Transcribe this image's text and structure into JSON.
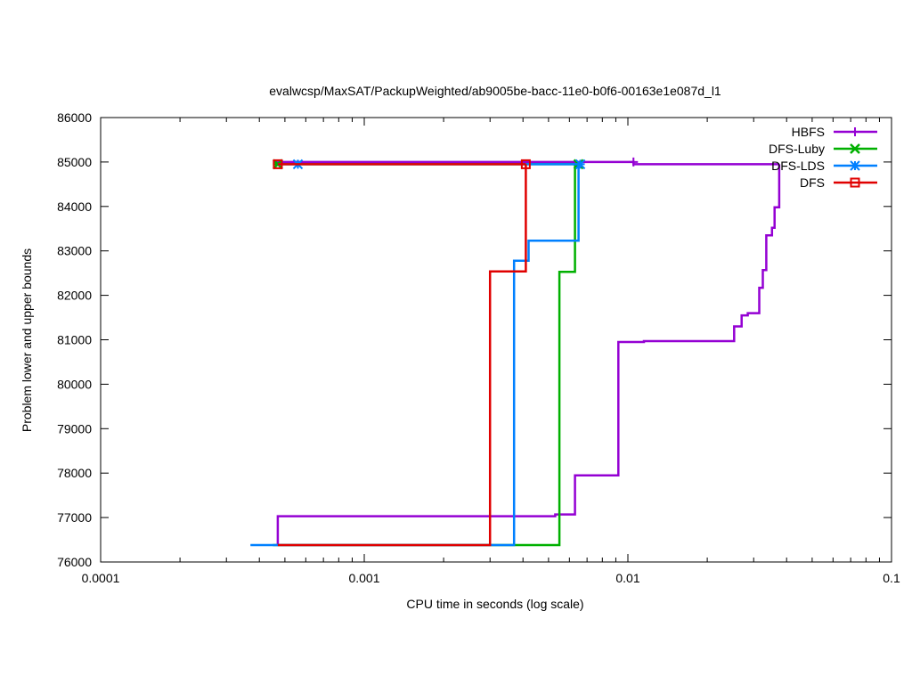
{
  "chart_data": {
    "type": "line",
    "title": "evalwcsp/MaxSAT/PackupWeighted/ab9005be-bacc-11e0-b0f6-00163e1e087d_l1",
    "xlabel": "CPU time in seconds (log scale)",
    "ylabel": "Problem lower and upper bounds",
    "xscale": "log",
    "xlim": [
      0.0001,
      0.1
    ],
    "ylim": [
      76000,
      86000
    ],
    "grid": false,
    "legend_position": "top-right",
    "x_ticks": [
      {
        "value": 0.0001,
        "label": "0.0001"
      },
      {
        "value": 0.001,
        "label": "0.001"
      },
      {
        "value": 0.01,
        "label": "0.01"
      },
      {
        "value": 0.1,
        "label": "0.1"
      }
    ],
    "y_ticks": [
      {
        "value": 76000,
        "label": "76000"
      },
      {
        "value": 77000,
        "label": "77000"
      },
      {
        "value": 78000,
        "label": "78000"
      },
      {
        "value": 79000,
        "label": "79000"
      },
      {
        "value": 80000,
        "label": "80000"
      },
      {
        "value": 81000,
        "label": "81000"
      },
      {
        "value": 82000,
        "label": "82000"
      },
      {
        "value": 83000,
        "label": "83000"
      },
      {
        "value": 84000,
        "label": "84000"
      },
      {
        "value": 85000,
        "label": "85000"
      },
      {
        "value": 86000,
        "label": "86000"
      }
    ],
    "series": [
      {
        "name": "HBFS",
        "color": "#9400d3",
        "marker": "plus",
        "upper": [
          [
            0.00045,
            85000
          ],
          [
            0.0105,
            85000
          ],
          [
            0.0105,
            84950
          ],
          [
            0.0375,
            84950
          ]
        ],
        "upper_markers": [
          [
            0.0105,
            85000
          ]
        ],
        "lower": [
          [
            0.00047,
            76380
          ],
          [
            0.00047,
            77030
          ],
          [
            0.0053,
            77030
          ],
          [
            0.0053,
            77070
          ],
          [
            0.0063,
            77070
          ],
          [
            0.0063,
            77950
          ],
          [
            0.0092,
            77950
          ],
          [
            0.0092,
            80950
          ],
          [
            0.0115,
            80950
          ],
          [
            0.0115,
            80970
          ],
          [
            0.0253,
            80970
          ],
          [
            0.0253,
            81300
          ],
          [
            0.027,
            81300
          ],
          [
            0.027,
            81550
          ],
          [
            0.0285,
            81550
          ],
          [
            0.0285,
            81600
          ],
          [
            0.0315,
            81600
          ],
          [
            0.0315,
            82170
          ],
          [
            0.0325,
            82170
          ],
          [
            0.0325,
            82570
          ],
          [
            0.0335,
            82570
          ],
          [
            0.0335,
            83350
          ],
          [
            0.0352,
            83350
          ],
          [
            0.0352,
            83520
          ],
          [
            0.036,
            83520
          ],
          [
            0.036,
            83980
          ],
          [
            0.0375,
            83980
          ],
          [
            0.0375,
            84950
          ]
        ]
      },
      {
        "name": "DFS-Luby",
        "color": "#00b000",
        "marker": "x",
        "upper": [
          [
            0.00045,
            84950
          ],
          [
            0.0065,
            84950
          ]
        ],
        "upper_markers": [
          [
            0.00047,
            84950
          ],
          [
            0.0065,
            84950
          ]
        ],
        "lower": [
          [
            0.00045,
            76380
          ],
          [
            0.0055,
            76380
          ],
          [
            0.0055,
            82530
          ],
          [
            0.0063,
            82530
          ],
          [
            0.0063,
            84950
          ]
        ]
      },
      {
        "name": "DFS-LDS",
        "color": "#0080ff",
        "marker": "star",
        "upper": [
          [
            0.00047,
            84950
          ],
          [
            0.0066,
            84950
          ]
        ],
        "upper_markers": [
          [
            0.00056,
            84950
          ],
          [
            0.0066,
            84950
          ]
        ],
        "lower": [
          [
            0.00037,
            76380
          ],
          [
            0.0037,
            76380
          ],
          [
            0.0037,
            82780
          ],
          [
            0.0042,
            82780
          ],
          [
            0.0042,
            83230
          ],
          [
            0.0065,
            83230
          ],
          [
            0.0065,
            84950
          ]
        ]
      },
      {
        "name": "DFS",
        "color": "#e00000",
        "marker": "square",
        "upper": [
          [
            0.00047,
            84950
          ],
          [
            0.0041,
            84950
          ]
        ],
        "upper_markers": [
          [
            0.00047,
            84950
          ],
          [
            0.0041,
            84950
          ]
        ],
        "lower": [
          [
            0.00047,
            76380
          ],
          [
            0.003,
            76380
          ],
          [
            0.003,
            82540
          ],
          [
            0.0041,
            82540
          ],
          [
            0.0041,
            84950
          ]
        ]
      }
    ]
  }
}
